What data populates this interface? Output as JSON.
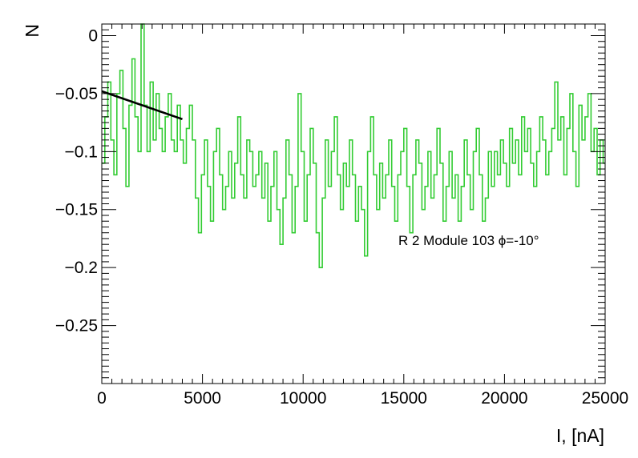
{
  "chart_data": {
    "type": "line",
    "xlabel": "I, [nA]",
    "ylabel": "N",
    "xlim": [
      0,
      25000
    ],
    "ylim": [
      -0.3,
      0.01
    ],
    "x_ticks": [
      0,
      5000,
      10000,
      15000,
      20000,
      25000
    ],
    "x_tick_labels": [
      "0",
      "5000",
      "10000",
      "15000",
      "20000",
      "25000"
    ],
    "y_ticks": [
      0,
      -0.05,
      -0.1,
      -0.15,
      -0.2,
      -0.25
    ],
    "y_tick_labels": [
      "0",
      "−0.05",
      "−0.1",
      "−0.15",
      "−0.2",
      "−0.25"
    ],
    "grid": false,
    "annotation": "R 2 Module 103 ϕ=-10°",
    "series": [
      {
        "style": "green-step",
        "color": "#33cc33",
        "x": [
          0,
          150,
          300,
          450,
          600,
          750,
          900,
          1050,
          1200,
          1350,
          1500,
          1650,
          1800,
          1950,
          2100,
          2250,
          2400,
          2550,
          2700,
          2850,
          3000,
          3150,
          3300,
          3450,
          3600,
          3750,
          3900,
          4050,
          4200,
          4350,
          4500,
          4650,
          4800,
          4950,
          5100,
          5250,
          5400,
          5550,
          5700,
          5850,
          6000,
          6150,
          6300,
          6450,
          6600,
          6750,
          6900,
          7050,
          7200,
          7350,
          7500,
          7650,
          7800,
          7950,
          8100,
          8250,
          8400,
          8550,
          8700,
          8850,
          9000,
          9150,
          9300,
          9450,
          9600,
          9750,
          9900,
          10050,
          10200,
          10350,
          10500,
          10650,
          10800,
          10950,
          11100,
          11250,
          11400,
          11550,
          11700,
          11850,
          12000,
          12150,
          12300,
          12450,
          12600,
          12750,
          12900,
          13050,
          13200,
          13350,
          13500,
          13650,
          13800,
          13950,
          14100,
          14250,
          14400,
          14550,
          14700,
          14850,
          15000,
          15150,
          15300,
          15450,
          15600,
          15750,
          15900,
          16050,
          16200,
          16350,
          16500,
          16650,
          16800,
          16950,
          17100,
          17250,
          17400,
          17550,
          17700,
          17850,
          18000,
          18150,
          18300,
          18450,
          18600,
          18750,
          18900,
          19050,
          19200,
          19350,
          19500,
          19650,
          19800,
          19950,
          20100,
          20250,
          20400,
          20550,
          20700,
          20850,
          21000,
          21150,
          21300,
          21450,
          21600,
          21750,
          21900,
          22050,
          22200,
          22350,
          22500,
          22650,
          22800,
          22950,
          23100,
          23250,
          23400,
          23550,
          23700,
          23850,
          24000,
          24150,
          24300,
          24450,
          24600,
          24750,
          24900
        ],
        "y": [
          -0.11,
          -0.07,
          -0.04,
          -0.09,
          -0.12,
          -0.05,
          -0.03,
          -0.08,
          -0.13,
          -0.06,
          -0.02,
          -0.07,
          -0.1,
          0.01,
          -0.06,
          -0.1,
          -0.04,
          -0.09,
          -0.05,
          -0.08,
          -0.1,
          -0.07,
          -0.05,
          -0.09,
          -0.1,
          -0.06,
          -0.09,
          -0.11,
          -0.08,
          -0.06,
          -0.09,
          -0.14,
          -0.17,
          -0.12,
          -0.09,
          -0.13,
          -0.16,
          -0.1,
          -0.08,
          -0.12,
          -0.15,
          -0.13,
          -0.1,
          -0.14,
          -0.11,
          -0.07,
          -0.12,
          -0.14,
          -0.09,
          -0.1,
          -0.13,
          -0.12,
          -0.1,
          -0.14,
          -0.11,
          -0.16,
          -0.13,
          -0.1,
          -0.15,
          -0.18,
          -0.14,
          -0.09,
          -0.12,
          -0.17,
          -0.13,
          -0.05,
          -0.1,
          -0.16,
          -0.12,
          -0.08,
          -0.11,
          -0.17,
          -0.2,
          -0.14,
          -0.09,
          -0.13,
          -0.1,
          -0.07,
          -0.12,
          -0.15,
          -0.11,
          -0.13,
          -0.09,
          -0.12,
          -0.16,
          -0.13,
          -0.15,
          -0.19,
          -0.1,
          -0.07,
          -0.12,
          -0.15,
          -0.11,
          -0.14,
          -0.12,
          -0.09,
          -0.13,
          -0.16,
          -0.12,
          -0.1,
          -0.08,
          -0.13,
          -0.17,
          -0.12,
          -0.09,
          -0.11,
          -0.15,
          -0.13,
          -0.1,
          -0.14,
          -0.12,
          -0.08,
          -0.11,
          -0.16,
          -0.13,
          -0.1,
          -0.14,
          -0.12,
          -0.16,
          -0.13,
          -0.09,
          -0.12,
          -0.15,
          -0.1,
          -0.08,
          -0.12,
          -0.16,
          -0.14,
          -0.1,
          -0.13,
          -0.1,
          -0.12,
          -0.09,
          -0.11,
          -0.13,
          -0.08,
          -0.11,
          -0.09,
          -0.12,
          -0.07,
          -0.1,
          -0.08,
          -0.11,
          -0.13,
          -0.1,
          -0.07,
          -0.09,
          -0.12,
          -0.1,
          -0.08,
          -0.04,
          -0.09,
          -0.07,
          -0.12,
          -0.08,
          -0.05,
          -0.1,
          -0.13,
          -0.06,
          -0.09,
          -0.07,
          -0.05,
          -0.1,
          -0.08,
          -0.12,
          -0.09,
          -0.11
        ]
      },
      {
        "style": "black-line",
        "color": "#000000",
        "x": [
          0,
          4000
        ],
        "y": [
          -0.048,
          -0.072
        ]
      }
    ]
  }
}
